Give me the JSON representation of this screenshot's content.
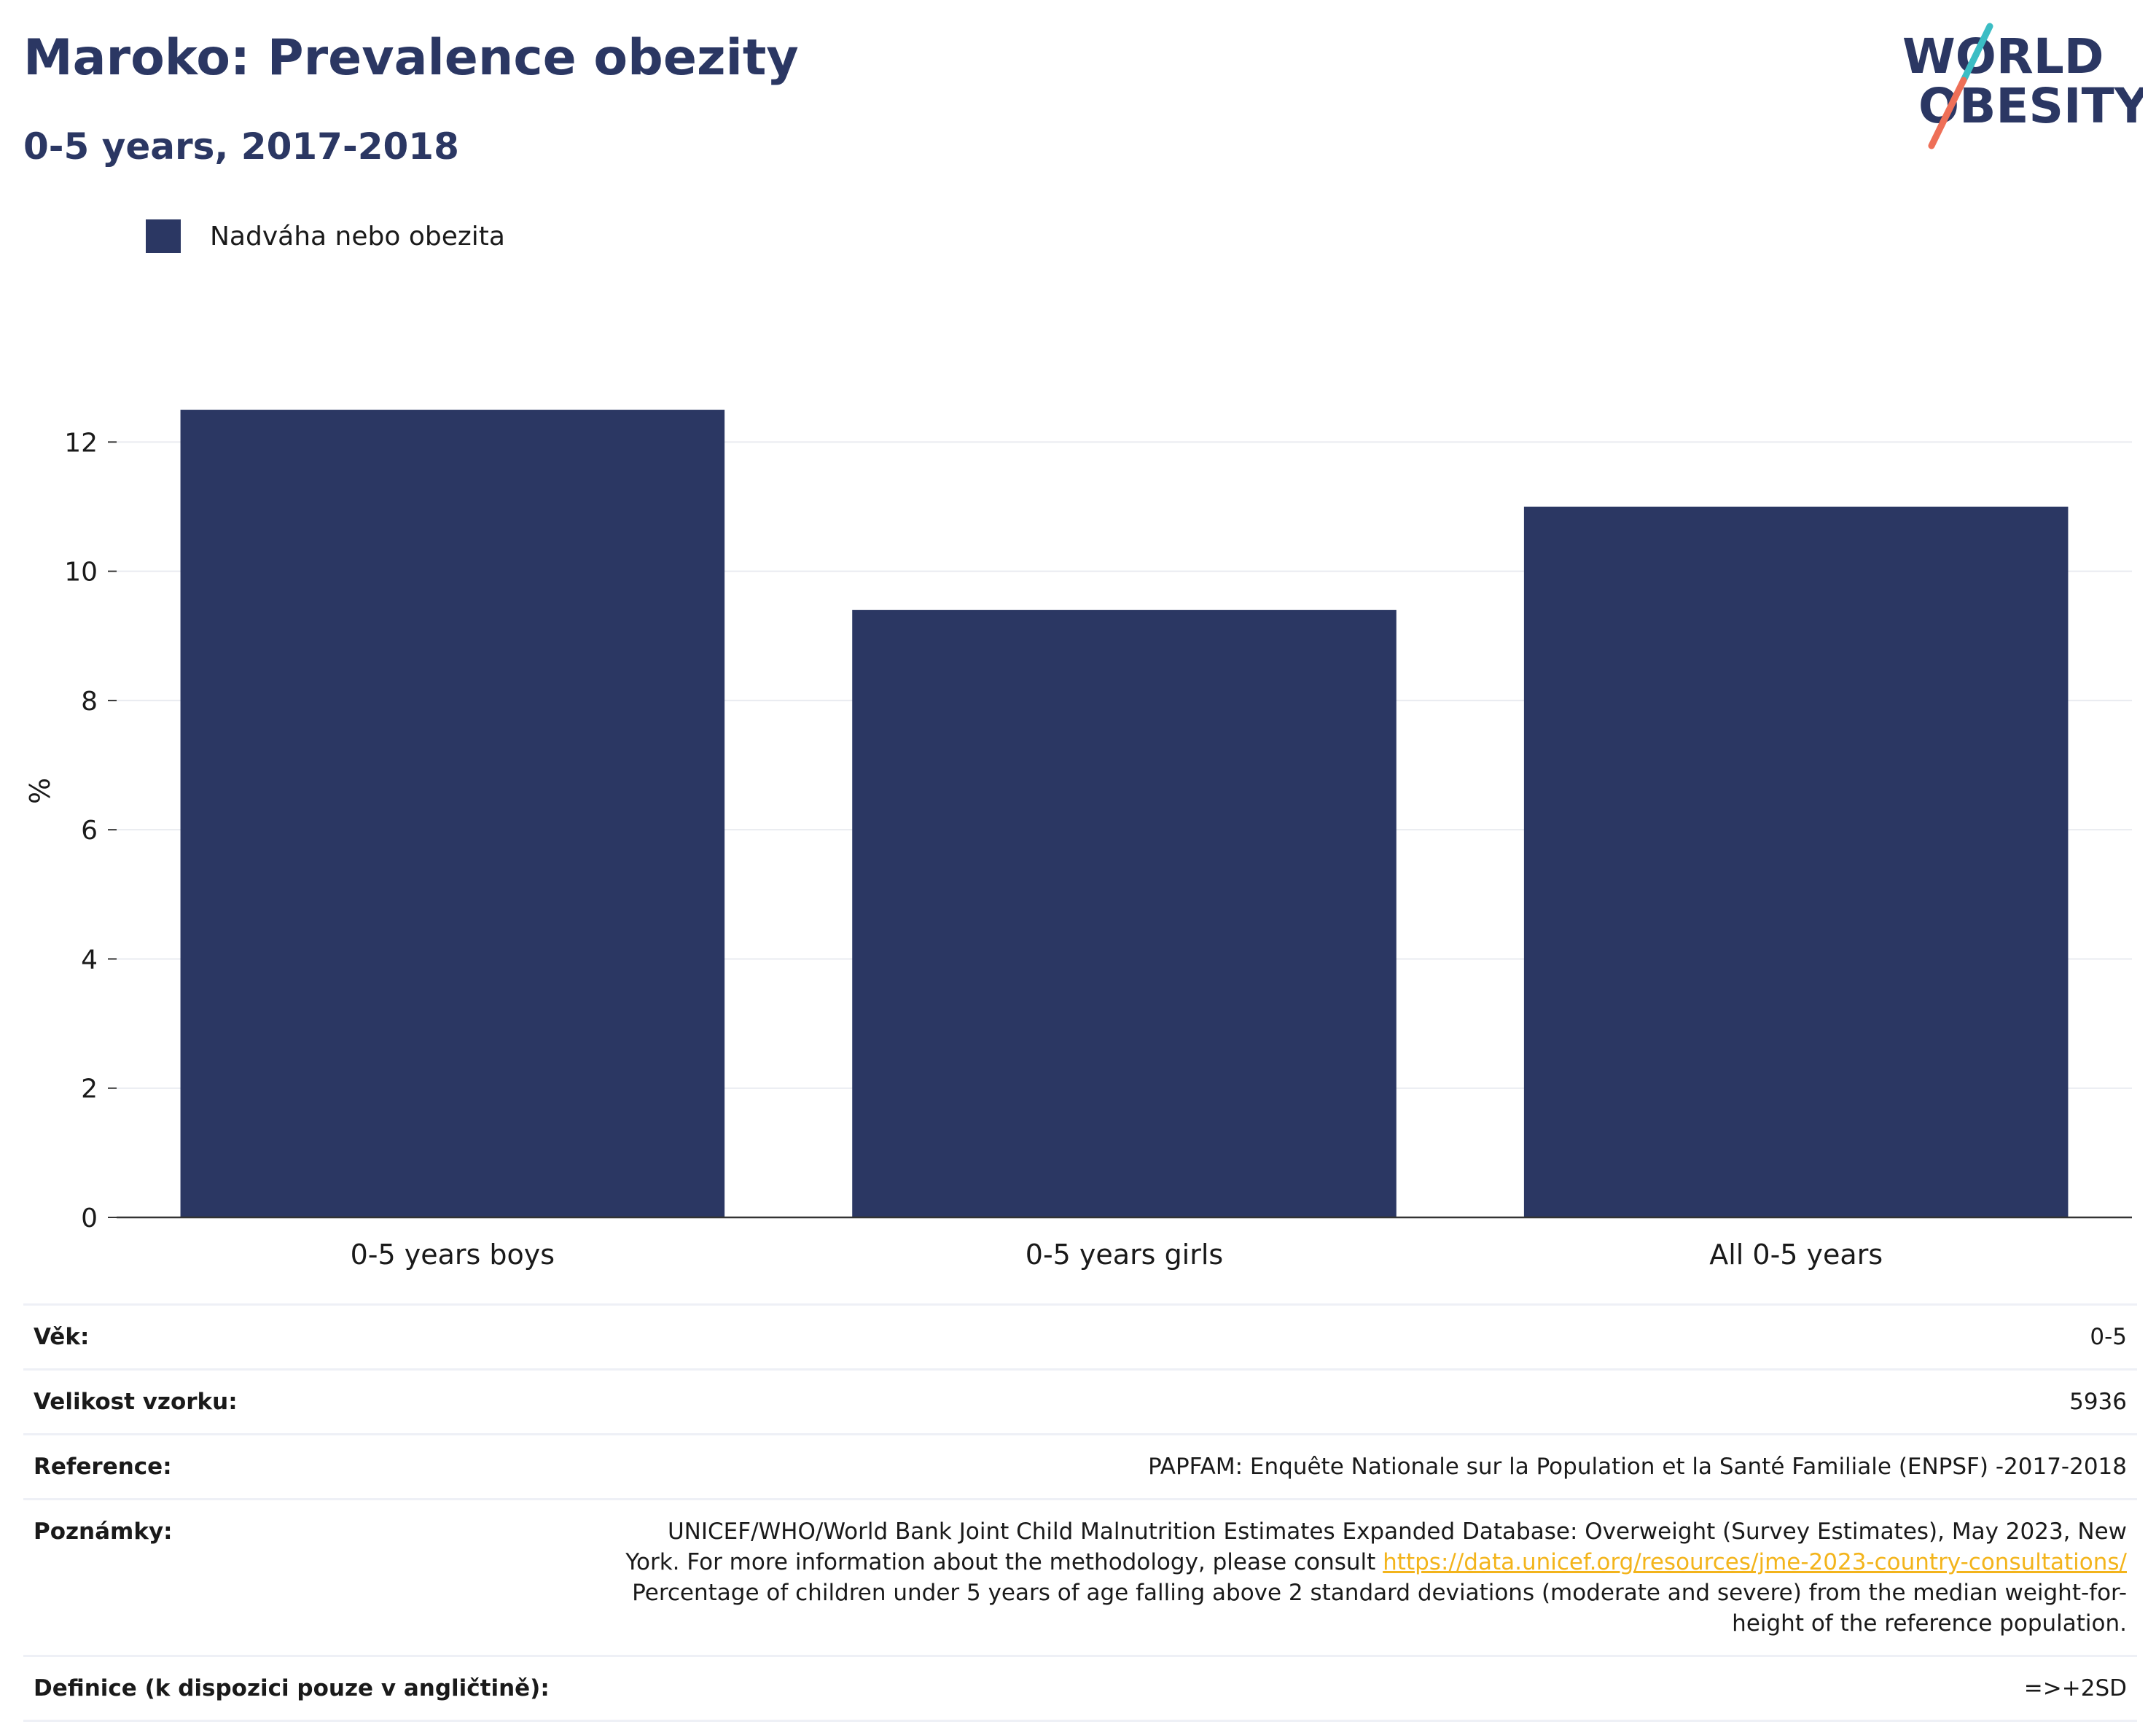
{
  "title": "Maroko: Prevalence obezity",
  "subtitle": "0-5 years, 2017-2018",
  "logo": {
    "line1": "WORLD",
    "line2": "OBESITY",
    "accent_teal": "#3bbdc4",
    "accent_coral": "#ee6f57",
    "color": "#2b3763"
  },
  "legend": {
    "label": "Nadváha nebo obezita",
    "color": "#2b3763"
  },
  "chart_data": {
    "type": "bar",
    "categories": [
      "0-5 years boys",
      "0-5 years girls",
      "All 0-5 years"
    ],
    "series": [
      {
        "name": "Nadváha nebo obezita",
        "values": [
          12.5,
          9.4,
          11.0
        ],
        "color": "#2b3763"
      }
    ],
    "ylabel": "%",
    "ylim": [
      0,
      13.2
    ],
    "yticks": [
      0,
      2,
      4,
      6,
      8,
      10,
      12
    ],
    "grid": true,
    "legend_position": "top-left"
  },
  "meta": {
    "age_label": "Věk:",
    "age_value": "0-5",
    "sample_label": "Velikost vzorku:",
    "sample_value": "5936",
    "reference_label": "Reference:",
    "reference_value": "PAPFAM: Enquête Nationale sur la Population et la Santé Familiale (ENPSF) -2017-2018",
    "notes_label": "Poznámky:",
    "notes_text1": "UNICEF/WHO/World Bank Joint Child Malnutrition Estimates Expanded Database: Overweight (Survey Estimates), May 2023, New York. For more information about the methodology, please consult ",
    "notes_link": "https://data.unicef.org/resources/jme-2023-country-consultations/",
    "notes_text2": "Percentage of children under 5 years of age falling above 2 standard deviations (moderate and severe) from the median weight-for-height of the reference population.",
    "definition_label": "Definice (k dispozici pouze v angličtině):",
    "definition_value": "=>+2SD"
  }
}
